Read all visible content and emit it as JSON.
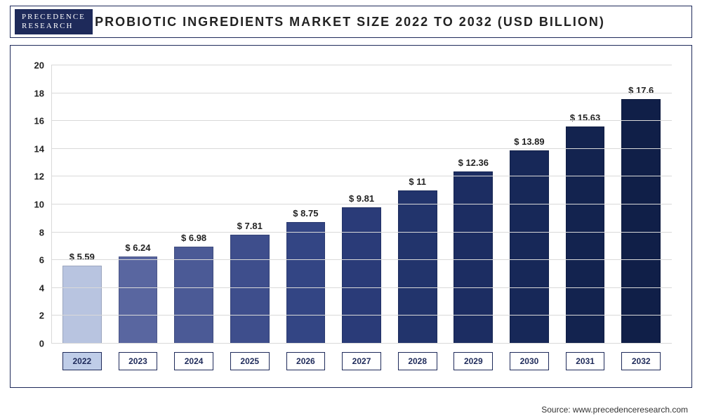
{
  "logo": {
    "line1": "PRECEDENCE",
    "line2": "RESEARCH"
  },
  "title": "PROBIOTIC INGREDIENTS MARKET SIZE 2022 TO 2032 (USD BILLION)",
  "source": "Source: www.precedenceresearch.com",
  "chart": {
    "type": "bar",
    "background_color": "#ffffff",
    "grid_color": "#d9d9d9",
    "border_color": "#1e2a5a",
    "ylim": [
      0,
      20
    ],
    "ytick_step": 2,
    "yticks": [
      0,
      2,
      4,
      6,
      8,
      10,
      12,
      14,
      16,
      18,
      20
    ],
    "ytick_fontsize": 13,
    "bar_width": 0.7,
    "value_label_prefix": "$ ",
    "value_label_fontsize": 13,
    "categories": [
      "2022",
      "2023",
      "2024",
      "2025",
      "2026",
      "2027",
      "2028",
      "2029",
      "2030",
      "2031",
      "2032"
    ],
    "values": [
      5.59,
      6.24,
      6.98,
      7.81,
      8.75,
      9.81,
      11,
      12.36,
      13.89,
      15.63,
      17.6
    ],
    "value_labels": [
      "5.59",
      "6.24",
      "6.98",
      "7.81",
      "8.75",
      "9.81",
      "11",
      "12.36",
      "13.89",
      "15.63",
      "17.6"
    ],
    "bar_colors": [
      "#b8c4e0",
      "#5966a0",
      "#4b5a96",
      "#3e4e8c",
      "#334584",
      "#2a3b78",
      "#22346c",
      "#1c2d62",
      "#172858",
      "#13234f",
      "#101f48"
    ],
    "xlabel_highlight_index": 0,
    "xlabel_highlight_bg": "#bfcde8",
    "xlabel_fontsize": 12
  }
}
